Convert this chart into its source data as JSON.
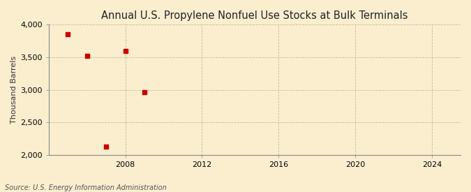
{
  "title": "Annual U.S. Propylene Nonfuel Use Stocks at Bulk Terminals",
  "ylabel": "Thousand Barrels",
  "source_text": "Source: U.S. Energy Information Administration",
  "years": [
    2005,
    2006,
    2007,
    2008,
    2009
  ],
  "values": [
    3850,
    3520,
    2130,
    3600,
    2960
  ],
  "marker_color": "#cc0000",
  "marker_size": 4,
  "xlim": [
    2004,
    2025.5
  ],
  "ylim": [
    2000,
    4000
  ],
  "yticks": [
    2000,
    2500,
    3000,
    3500,
    4000
  ],
  "xticks": [
    2008,
    2012,
    2016,
    2020,
    2024
  ],
  "xtick_labels": [
    "2008",
    "2012",
    "2016",
    "2020",
    "2024"
  ],
  "background_color": "#faeecf",
  "grid_color": "#c8b89a",
  "title_fontsize": 10.5,
  "label_fontsize": 8,
  "tick_fontsize": 8,
  "source_fontsize": 7
}
